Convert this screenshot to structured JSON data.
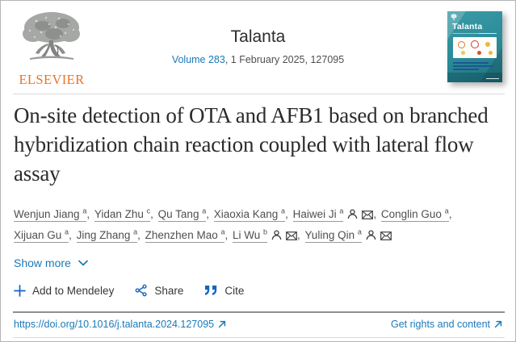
{
  "header": {
    "publisher": "ELSEVIER",
    "journal": "Talanta",
    "volume_link": "Volume 283",
    "issue_info": ", 1 February 2025, 127095"
  },
  "cover": {
    "title": "Talanta"
  },
  "article": {
    "title": "On-site detection of OTA and AFB1 based on branched hybridization chain reaction coupled with lateral flow assay",
    "show_more_label": "Show more",
    "authors": [
      {
        "name": "Wenjun Jiang",
        "sup": "a",
        "has_profile": false,
        "has_email": false
      },
      {
        "name": "Yidan Zhu",
        "sup": "c",
        "has_profile": false,
        "has_email": false
      },
      {
        "name": "Qu Tang",
        "sup": "a",
        "has_profile": false,
        "has_email": false
      },
      {
        "name": "Xiaoxia Kang",
        "sup": "a",
        "has_profile": false,
        "has_email": false
      },
      {
        "name": "Haiwei Ji",
        "sup": "a",
        "has_profile": true,
        "has_email": true
      },
      {
        "name": "Conglin Guo",
        "sup": "a",
        "has_profile": false,
        "has_email": false
      },
      {
        "name": "Xijuan Gu",
        "sup": "a",
        "has_profile": false,
        "has_email": false
      },
      {
        "name": "Jing Zhang",
        "sup": "a",
        "has_profile": false,
        "has_email": false
      },
      {
        "name": "Zhenzhen Mao",
        "sup": "a",
        "has_profile": false,
        "has_email": false
      },
      {
        "name": "Li Wu",
        "sup": "b",
        "has_profile": true,
        "has_email": true
      },
      {
        "name": "Yuling Qin",
        "sup": "a",
        "has_profile": true,
        "has_email": true
      }
    ]
  },
  "actions": {
    "mendeley_label": "Add to Mendeley",
    "share_label": "Share",
    "cite_label": "Cite"
  },
  "footer": {
    "doi": "https://doi.org/10.1016/j.talanta.2024.127095",
    "rights_label": "Get rights and content"
  },
  "colors": {
    "link_blue": "#1a79b8",
    "icon_blue": "#1565c0",
    "elsevier_orange": "#ee7220",
    "title_ink": "#2b2b2b",
    "body_ink": "#4f4f4f",
    "cover_teal": "#2a8b98"
  }
}
